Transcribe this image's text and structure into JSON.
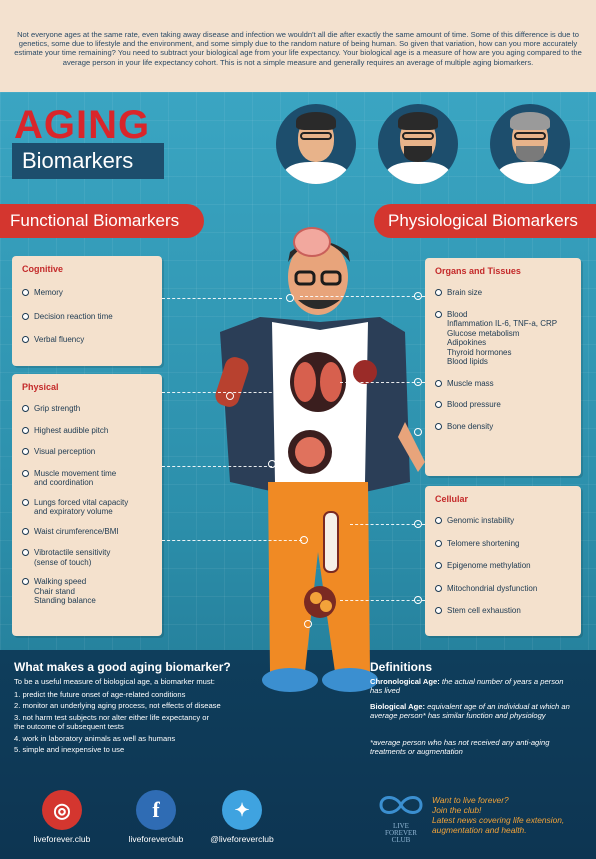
{
  "intro": {
    "text": "Not everyone ages at the same rate, even taking away disease and infection we wouldn't all die after exactly the same amount of time. Some of this difference is due to genetics, some due to lifestyle and the environment, and some simply due to the random nature of being human. So given that variation, how can you more accurately estimate your time remaining? You need to subtract your biological age from your life expectancy. Your biological age is a measure of how are you aging compared to the average person in your life expectancy cohort. This is not a simple measure and generally requires an average of multiple aging biomarkers."
  },
  "title": {
    "main": "AGING",
    "sub": "Biomarkers"
  },
  "banners": {
    "functional": "Functional Biomarkers",
    "physiological": "Physiological Biomarkers"
  },
  "cognitive": {
    "heading": "Cognitive",
    "items": [
      "Memory",
      "Decision reaction time",
      "Verbal fluency"
    ]
  },
  "physical": {
    "heading": "Physical",
    "items": [
      "Grip strength",
      "Highest audible pitch",
      "Visual perception",
      "Muscle movement time",
      "Lungs forced vital capacity",
      "Waist cirumference/BMI",
      "Vibrotactile sensitivity",
      "Walking speed"
    ],
    "subs": {
      "muscle": "and coordination",
      "lungs": "and expiratory volume",
      "vibro": "(sense of touch)",
      "walking_1": "Chair stand",
      "walking_2": "Standing balance"
    }
  },
  "organs": {
    "heading": "Organs and Tissues",
    "items": [
      "Brain size",
      "Blood",
      "Muscle mass",
      "Blood pressure",
      "Bone density"
    ],
    "blood_subs": [
      "Inflammation IL-6, TNF-a, CRP",
      "Glucose metabolism",
      "Adipokines",
      "Thyroid hormones",
      "Blood lipids"
    ]
  },
  "cellular": {
    "heading": "Cellular",
    "items": [
      "Genomic instability",
      "Telomere shortening",
      "Epigenome methylation",
      "Mitochondrial dysfunction",
      "Stem cell exhaustion"
    ]
  },
  "good": {
    "title": "What makes a good aging biomarker?",
    "intro": "To be a useful measure of biological age, a biomarker must:",
    "items": [
      "1. predict the future onset of age-related conditions",
      "2. monitor an underlying aging process, not effects of disease",
      "3. not harm test subjects nor alter either life expectancy or",
      "the outcome of subsequent tests",
      "4. work in laboratory animals as well as humans",
      "5. simple and inexpensive to use"
    ]
  },
  "definitions": {
    "title": "Definitions",
    "chrono_label": "Chronological Age:",
    "chrono_text": "the actual number of years a person has lived",
    "bio_label": "Biological Age:",
    "bio_text": "equivalent age of an individual at which an average person* has similar function and physiology",
    "note": "*average person who has not received any anti-aging treatments or augmentation"
  },
  "social": {
    "web": "liveforever.club",
    "facebook": "liveforeverclub",
    "twitter": "@liveforeverclub"
  },
  "logo": {
    "line1": "LIVE",
    "line2": "FOREVER",
    "line3": "CLUB"
  },
  "cta": {
    "line1": "Want to live forever?",
    "line2": "Join the club!",
    "line3": "Latest news covering life extension, augmentation and health."
  },
  "colors": {
    "accent_red": "#d4362f",
    "navy": "#1d4e6d",
    "panel": "#f4e1cd",
    "orange": "#f2a33a"
  }
}
